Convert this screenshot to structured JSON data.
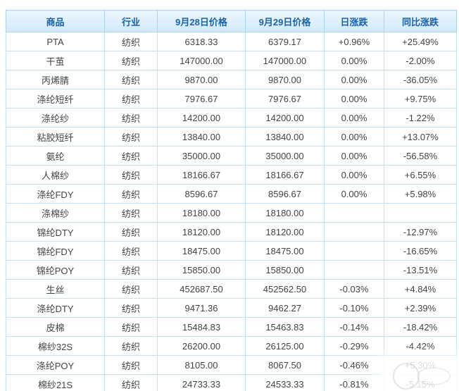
{
  "chart_data": {
    "type": "table",
    "headers": [
      "商品",
      "行业",
      "9月28日价格",
      "9月29日价格",
      "日涨跌",
      "同比涨跌"
    ],
    "rows": [
      {
        "name": "PTA",
        "is_link": false,
        "industry": "纺织",
        "price_0928": "6318.33",
        "price_0929": "6379.17",
        "daily_change": "+0.96%",
        "yoy_change": "+25.49%"
      },
      {
        "name": "干茧",
        "is_link": true,
        "industry": "纺织",
        "price_0928": "147000.00",
        "price_0929": "147000.00",
        "daily_change": "0.00%",
        "yoy_change": "-2.00%"
      },
      {
        "name": "丙烯腈",
        "is_link": true,
        "industry": "纺织",
        "price_0928": "9870.00",
        "price_0929": "9870.00",
        "daily_change": "0.00%",
        "yoy_change": "-36.05%"
      },
      {
        "name": "涤纶短纤",
        "is_link": true,
        "industry": "纺织",
        "price_0928": "7976.67",
        "price_0929": "7976.67",
        "daily_change": "0.00%",
        "yoy_change": "+9.75%"
      },
      {
        "name": "涤纶纱",
        "is_link": true,
        "industry": "纺织",
        "price_0928": "14200.00",
        "price_0929": "14200.00",
        "daily_change": "0.00%",
        "yoy_change": "-1.22%"
      },
      {
        "name": "粘胶短纤",
        "is_link": true,
        "industry": "纺织",
        "price_0928": "13840.00",
        "price_0929": "13840.00",
        "daily_change": "0.00%",
        "yoy_change": "+13.07%"
      },
      {
        "name": "氨纶",
        "is_link": true,
        "industry": "纺织",
        "price_0928": "35000.00",
        "price_0929": "35000.00",
        "daily_change": "0.00%",
        "yoy_change": "-56.58%"
      },
      {
        "name": "人棉纱",
        "is_link": true,
        "industry": "纺织",
        "price_0928": "18166.67",
        "price_0929": "18166.67",
        "daily_change": "0.00%",
        "yoy_change": "+6.55%"
      },
      {
        "name": "涤纶FDY",
        "is_link": true,
        "industry": "纺织",
        "price_0928": "8596.67",
        "price_0929": "8596.67",
        "daily_change": "0.00%",
        "yoy_change": "+5.98%"
      },
      {
        "name": "涤棉纱",
        "is_link": false,
        "industry": "纺织",
        "price_0928": "18180.00",
        "price_0929": "18180.00",
        "daily_change": "",
        "yoy_change": ""
      },
      {
        "name": "锦纶DTY",
        "is_link": true,
        "industry": "纺织",
        "price_0928": "18120.00",
        "price_0929": "18120.00",
        "daily_change": "",
        "yoy_change": "-12.97%"
      },
      {
        "name": "锦纶FDY",
        "is_link": true,
        "industry": "纺织",
        "price_0928": "18475.00",
        "price_0929": "18475.00",
        "daily_change": "",
        "yoy_change": "-16.65%"
      },
      {
        "name": "锦纶POY",
        "is_link": true,
        "industry": "纺织",
        "price_0928": "15850.00",
        "price_0929": "15850.00",
        "daily_change": "",
        "yoy_change": "-13.51%"
      },
      {
        "name": "生丝",
        "is_link": true,
        "industry": "纺织",
        "price_0928": "452687.50",
        "price_0929": "452562.50",
        "daily_change": "-0.03%",
        "yoy_change": "+4.84%"
      },
      {
        "name": "涤纶DTY",
        "is_link": true,
        "industry": "纺织",
        "price_0928": "9471.36",
        "price_0929": "9462.27",
        "daily_change": "-0.10%",
        "yoy_change": "+2.39%"
      },
      {
        "name": "皮棉",
        "is_link": true,
        "industry": "纺织",
        "price_0928": "15484.83",
        "price_0929": "15463.83",
        "daily_change": "-0.14%",
        "yoy_change": "-18.42%"
      },
      {
        "name": "棉纱32S",
        "is_link": false,
        "industry": "纺织",
        "price_0928": "26200.00",
        "price_0929": "26125.00",
        "daily_change": "-0.29%",
        "yoy_change": "-4.42%"
      },
      {
        "name": "涤纶POY",
        "is_link": true,
        "industry": "纺织",
        "price_0928": "8105.00",
        "price_0929": "8067.50",
        "daily_change": "-0.46%",
        "yoy_change": "+5.30%"
      },
      {
        "name": "棉纱21S",
        "is_link": false,
        "industry": "纺织",
        "price_0928": "24733.33",
        "price_0929": "24533.33",
        "daily_change": "-0.81%",
        "yoy_change": "-5.15%"
      }
    ]
  },
  "colors": {
    "up": "#ff0000",
    "down": "#009900",
    "flat": "#444444",
    "text": "#444444",
    "link": "#d2832a",
    "header_text": "#1b62a8"
  }
}
